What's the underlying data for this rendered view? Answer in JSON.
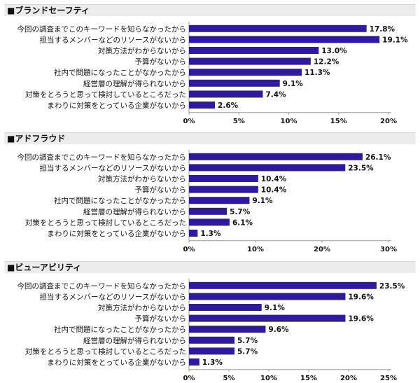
{
  "chart_data": [
    {
      "type": "bar",
      "orientation": "horizontal",
      "title": "■ブランドセーフティ",
      "categories": [
        "今回の調査までこのキーワードを知らなかったから",
        "担当するメンバーなどのリソースがないから",
        "対策方法がわからないから",
        "予算がないから",
        "社内で問題になったことがなかったから",
        "経営層の理解が得られないから",
        "対策をとろうと思って検討しているところだった",
        "まわりに対策をとっている企業がないから"
      ],
      "values": [
        17.8,
        19.1,
        13.0,
        12.2,
        11.3,
        9.1,
        7.4,
        2.6
      ],
      "value_labels": [
        "17.8%",
        "19.1%",
        "13.0%",
        "12.2%",
        "11.3%",
        "9.1%",
        "7.4%",
        "2.6%"
      ],
      "xlim": [
        0,
        20
      ],
      "ticks": [
        0,
        5,
        10,
        15,
        20
      ],
      "tick_labels": [
        "0%",
        "5%",
        "10%",
        "15%",
        "20%"
      ],
      "grid": false,
      "color": "#2e1a9c"
    },
    {
      "type": "bar",
      "orientation": "horizontal",
      "title": "■アドフラウド",
      "categories": [
        "今回の調査までこのキーワードを知らなかったから",
        "担当するメンバーなどのリソースがないから",
        "対策方法がわからないから",
        "予算がないから",
        "社内で問題になったことがなかったから",
        "経営層の理解が得られないから",
        "対策をとろうと思って検討しているところだった",
        "まわりに対策をとっている企業がないから"
      ],
      "values": [
        26.1,
        23.5,
        10.4,
        10.4,
        9.1,
        5.7,
        6.1,
        1.3
      ],
      "value_labels": [
        "26.1%",
        "23.5%",
        "10.4%",
        "10.4%",
        "9.1%",
        "5.7%",
        "6.1%",
        "1.3%"
      ],
      "xlim": [
        0,
        30
      ],
      "ticks": [
        0,
        10,
        20,
        30
      ],
      "tick_labels": [
        "0%",
        "10%",
        "20%",
        "30%"
      ],
      "grid": false,
      "color": "#2e1a9c"
    },
    {
      "type": "bar",
      "orientation": "horizontal",
      "title": "■ビューアビリティ",
      "categories": [
        "今回の調査までこのキーワードを知らなかったから",
        "担当するメンバーなどのリソースがないから",
        "対策方法がわからないから",
        "予算がないから",
        "社内で問題になったことがなかったから",
        "経営層の理解が得られないから",
        "対策をとろうと思って検討しているところだった",
        "まわりに対策をとっている企業がないから"
      ],
      "values": [
        23.5,
        19.6,
        9.1,
        19.6,
        9.6,
        5.7,
        5.7,
        1.3
      ],
      "value_labels": [
        "23.5%",
        "19.6%",
        "9.1%",
        "19.6%",
        "9.6%",
        "5.7%",
        "5.7%",
        "1.3%"
      ],
      "xlim": [
        0,
        25
      ],
      "ticks": [
        0,
        5,
        10,
        15,
        20,
        25
      ],
      "tick_labels": [
        "0%",
        "5%",
        "10%",
        "15%",
        "20%",
        "25%"
      ],
      "grid": false,
      "color": "#2e1a9c"
    }
  ]
}
